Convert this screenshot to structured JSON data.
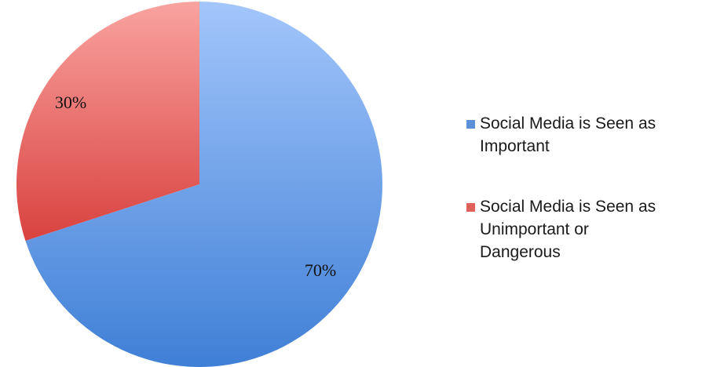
{
  "chart_data": {
    "type": "pie",
    "title": "",
    "start_angle_deg": 0,
    "direction": "clockwise",
    "slices": [
      {
        "name": "Social Media is Seen as Important",
        "value": 70,
        "label": "70%",
        "color": "#5b8fd8",
        "legend_lines": [
          "Social Media is Seen as",
          "Important"
        ]
      },
      {
        "name": "Social Media is Seen as Unimportant or Dangerous",
        "value": 30,
        "label": "30%",
        "color": "#e0605c",
        "legend_lines": [
          "Social Media is Seen as",
          "Unimportant or",
          "Dangerous"
        ]
      }
    ],
    "legend_position": "right"
  }
}
